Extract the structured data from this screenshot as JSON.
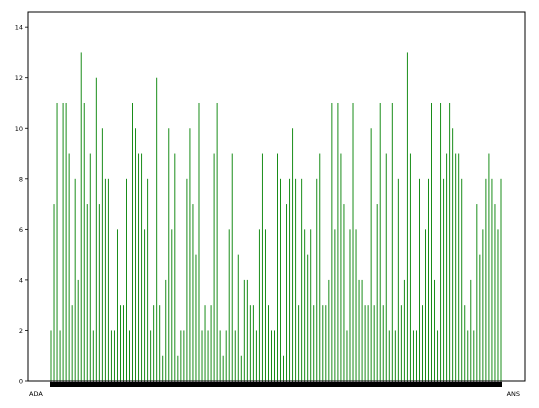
{
  "chart_data": {
    "type": "bar",
    "title": "",
    "xlabel": "",
    "ylabel": "",
    "ylim": [
      0,
      14.6
    ],
    "yticks": [
      0,
      2,
      4,
      6,
      8,
      10,
      12,
      14
    ],
    "grid": false,
    "bar_color": "#008000",
    "category_count": 150,
    "visible_tick_labels": {
      "first": "ADA",
      "last": "ANS"
    },
    "values": [
      2,
      7,
      11,
      2,
      11,
      11,
      9,
      3,
      8,
      4,
      13,
      11,
      7,
      9,
      2,
      12,
      7,
      10,
      8,
      8,
      2,
      2,
      6,
      3,
      3,
      8,
      2,
      11,
      10,
      9,
      9,
      6,
      8,
      2,
      3,
      12,
      3,
      1,
      4,
      10,
      6,
      9,
      1,
      2,
      2,
      8,
      10,
      7,
      5,
      11,
      2,
      3,
      2,
      3,
      9,
      11,
      2,
      1,
      2,
      6,
      9,
      2,
      5,
      1,
      4,
      4,
      3,
      3,
      2,
      6,
      9,
      6,
      3,
      2,
      2,
      9,
      8,
      1,
      7,
      8,
      10,
      8,
      3,
      8,
      6,
      5,
      6,
      3,
      8,
      9,
      3,
      3,
      4,
      11,
      6,
      11,
      9,
      7,
      2,
      6,
      11,
      6,
      4,
      4,
      3,
      3,
      10,
      3,
      7,
      11,
      3,
      9,
      2,
      11,
      2,
      8,
      3,
      4,
      13,
      9,
      2,
      2,
      8,
      3,
      6,
      8,
      11,
      4,
      2,
      11,
      8,
      9,
      11,
      10,
      9,
      9,
      8,
      3,
      2,
      4,
      2,
      7,
      5,
      6,
      8,
      9,
      8,
      7,
      6,
      8
    ]
  }
}
